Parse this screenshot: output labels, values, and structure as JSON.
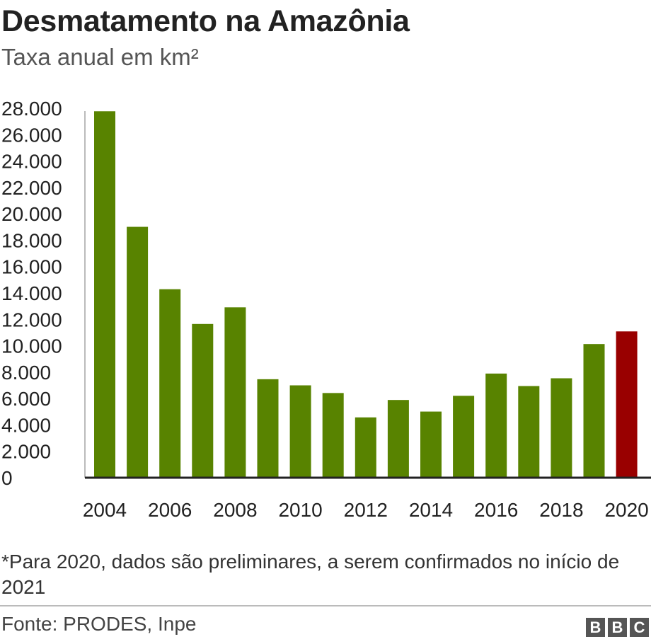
{
  "header": {
    "title": "Desmatamento na Amazônia",
    "subtitle": "Taxa anual em km²"
  },
  "chart_data": {
    "type": "bar",
    "x": [
      2004,
      2005,
      2006,
      2007,
      2008,
      2009,
      2010,
      2011,
      2012,
      2013,
      2014,
      2015,
      2016,
      2017,
      2018,
      2019,
      2020
    ],
    "values": [
      27772,
      19014,
      14286,
      11651,
      12911,
      7464,
      7000,
      6418,
      4571,
      5891,
      5012,
      6207,
      7893,
      6947,
      7536,
      10129,
      11088
    ],
    "x_tick_labels": [
      "2004",
      "2006",
      "2008",
      "2010",
      "2012",
      "2014",
      "2016",
      "2018",
      "2020"
    ],
    "y_tick_labels": [
      "0",
      "2.000",
      "4.000",
      "6.000",
      "8.000",
      "10.000",
      "12.000",
      "14.000",
      "16.000",
      "18.000",
      "20.000",
      "22.000",
      "24.000",
      "26.000",
      "28.000"
    ],
    "ylim": [
      0,
      28000
    ],
    "grid": false,
    "colors": {
      "default": "#588300",
      "highlight": "#990000"
    },
    "highlight_year": 2020
  },
  "footer": {
    "note": "*Para 2020, dados são preliminares, a serem confirmados no início de 2021",
    "source": "Fonte: PRODES, Inpe",
    "logo": [
      "B",
      "B",
      "C"
    ]
  }
}
